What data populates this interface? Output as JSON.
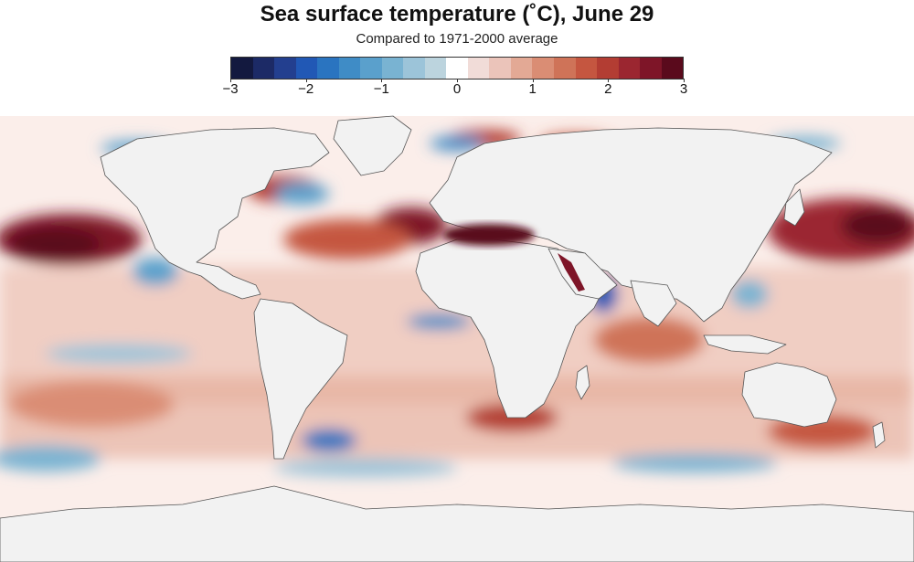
{
  "title": "Sea surface temperature (˚C), June 29",
  "subtitle": "Compared to 1971-2000 average",
  "legend": {
    "min": -3,
    "max": 3,
    "ticks": [
      "−3",
      "−2",
      "−1",
      "0",
      "1",
      "2",
      "3"
    ],
    "colors": [
      "#13193f",
      "#1c2a66",
      "#233f8f",
      "#2158b5",
      "#2a74c0",
      "#3f8cc6",
      "#5aa0cc",
      "#79b3d2",
      "#9cc4d9",
      "#bcd4de",
      "#ffffff",
      "#f1dcd8",
      "#ebc4ba",
      "#e3a995",
      "#da8d74",
      "#cf7358",
      "#c55640",
      "#b33d33",
      "#9b2630",
      "#7e1528",
      "#5a0a1c"
    ]
  },
  "map": {
    "land_color": "#f2f2f2",
    "border_color": "#555555",
    "ocean_warm_color": "#d98a72",
    "ocean_cool_color": "#6fa6cc",
    "ocean_neutral_color": "#fbeeea"
  }
}
